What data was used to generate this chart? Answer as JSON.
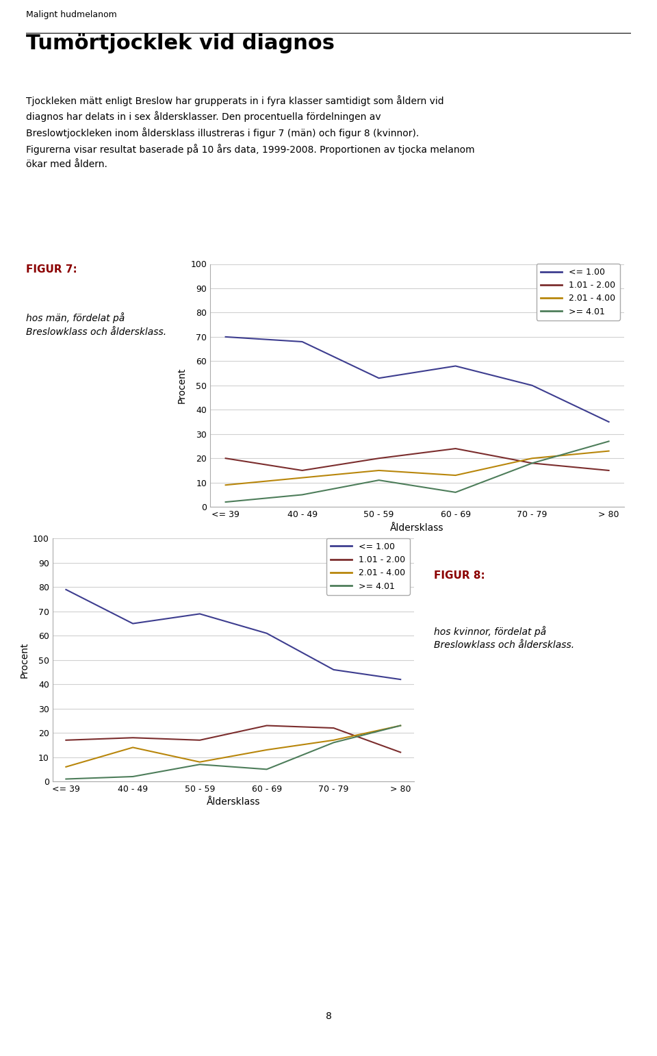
{
  "title_header": "Malignt hudmelanom",
  "section_title": "Tumörtjocklek vid diagnos",
  "body_text": "Tjockleken mätt enligt Breslow har grupperats in i fyra klasser samtidigt som åldern vid\ndiagnos har delats in i sex åldersklasser. Den procentuella fördelningen av\nBreslowtjockleken inom åldersklass illustreras i figur 7 (män) och figur 8 (kvinnor).\nFigurerna visar resultat baserade på 10 års data, 1999-2008. Proportionen av tjocka melanom\nökar med åldern.",
  "fig7_label": "FIGUR 7:",
  "fig7_caption": "hos män, fördelat på\nBreslowklass och åldersklass.",
  "fig8_label": "FIGUR 8:",
  "fig8_caption": "hos kvinnor, fördelat på\nBreslowklass och åldersklass.",
  "categories": [
    "<= 39",
    "40 - 49",
    "50 - 59",
    "60 - 69",
    "70 - 79",
    "> 80"
  ],
  "xlabel": "Åldersklass",
  "ylabel": "Procent",
  "legend_labels": [
    "<= 1.00",
    "1.01 - 2.00",
    "2.01 - 4.00",
    ">= 4.01"
  ],
  "line_colors": [
    "#3d3d8f",
    "#7b2d2d",
    "#b8860b",
    "#4d7d5a"
  ],
  "fig7_data": {
    "le100": [
      70,
      68,
      53,
      58,
      50,
      35
    ],
    "m102": [
      20,
      15,
      20,
      24,
      18,
      15
    ],
    "m204": [
      9,
      12,
      15,
      13,
      20,
      23
    ],
    "ge401": [
      2,
      5,
      11,
      6,
      18,
      27
    ]
  },
  "fig8_data": {
    "le100": [
      79,
      65,
      69,
      61,
      46,
      42
    ],
    "m102": [
      17,
      18,
      17,
      23,
      22,
      12
    ],
    "m204": [
      6,
      14,
      8,
      13,
      17,
      23
    ],
    "ge401": [
      1,
      2,
      7,
      5,
      16,
      23
    ]
  },
  "ylim": [
    0,
    100
  ],
  "yticks": [
    0,
    10,
    20,
    30,
    40,
    50,
    60,
    70,
    80,
    90,
    100
  ],
  "page_number": "8",
  "background_color": "#ffffff",
  "text_color": "#000000",
  "fig_label_color": "#8b0000",
  "header_line_color": "#000000",
  "grid_color": "#d0d0d0"
}
